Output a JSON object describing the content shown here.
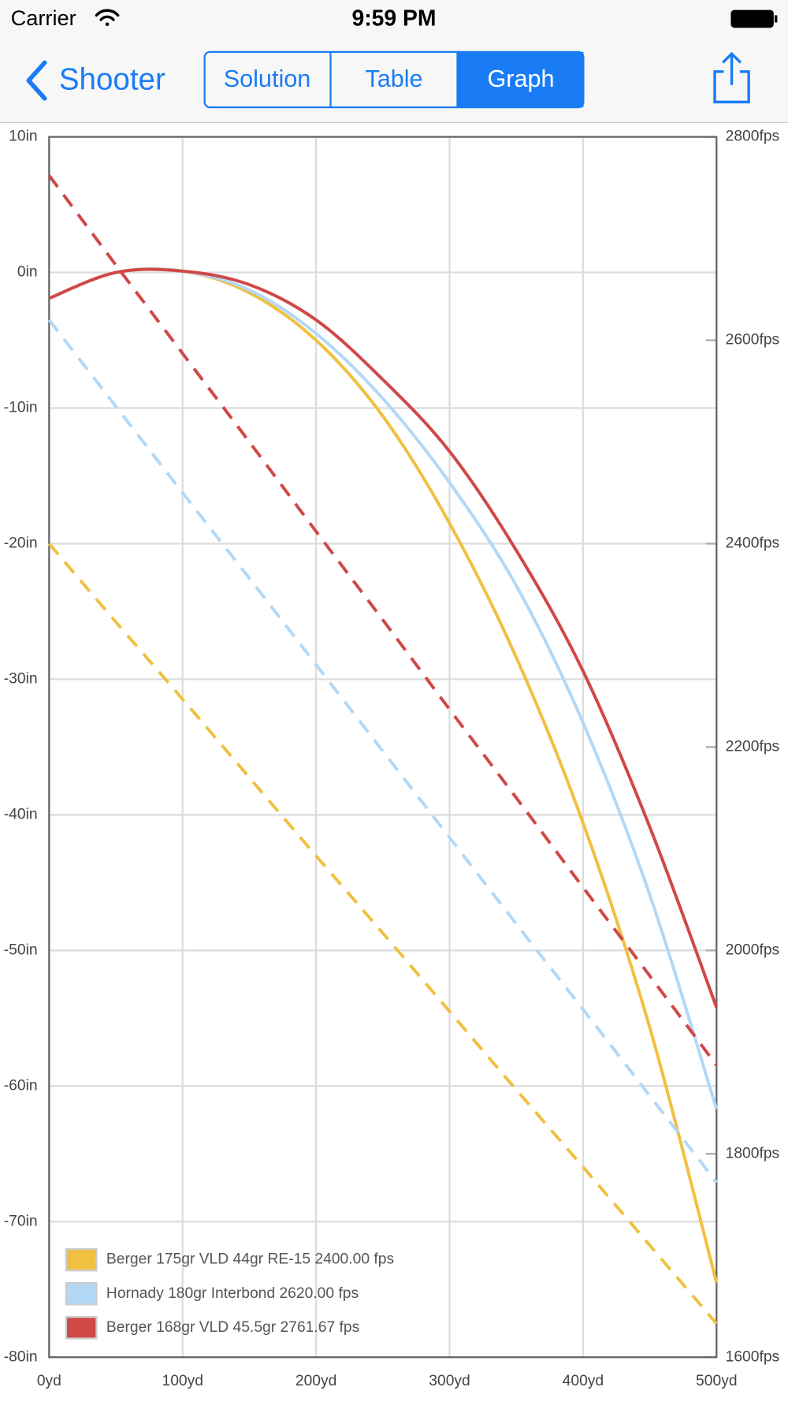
{
  "status_bar": {
    "carrier": "Carrier",
    "time": "9:59 PM"
  },
  "nav_bar": {
    "back": "Shooter",
    "segments": [
      "Solution",
      "Table",
      "Graph"
    ]
  },
  "chart_data": {
    "type": "line",
    "x": [
      0,
      50,
      100,
      150,
      200,
      250,
      300,
      350,
      400,
      450,
      500
    ],
    "xlim": [
      0,
      500
    ],
    "xticks": [
      {
        "value": 0,
        "label": "0yd"
      },
      {
        "value": 100,
        "label": "100yd"
      },
      {
        "value": 200,
        "label": "200yd"
      },
      {
        "value": 300,
        "label": "300yd"
      },
      {
        "value": 400,
        "label": "400yd"
      },
      {
        "value": 500,
        "label": "500yd"
      }
    ],
    "ylim": [
      -80,
      10
    ],
    "yticks": [
      {
        "value": 10,
        "label": "10in"
      },
      {
        "value": 0,
        "label": "0in"
      },
      {
        "value": -10,
        "label": "-10in"
      },
      {
        "value": -20,
        "label": "-20in"
      },
      {
        "value": -30,
        "label": "-30in"
      },
      {
        "value": -40,
        "label": "-40in"
      },
      {
        "value": -50,
        "label": "-50in"
      },
      {
        "value": -60,
        "label": "-60in"
      },
      {
        "value": -70,
        "label": "-70in"
      },
      {
        "value": -80,
        "label": "-80in"
      }
    ],
    "y2lim": [
      1600,
      2800
    ],
    "y2ticks": [
      {
        "value": 2800,
        "label": "2800fps"
      },
      {
        "value": 2600,
        "label": "2600fps"
      },
      {
        "value": 2400,
        "label": "2400fps"
      },
      {
        "value": 2200,
        "label": "2200fps"
      },
      {
        "value": 2000,
        "label": "2000fps"
      },
      {
        "value": 1800,
        "label": "1800fps"
      },
      {
        "value": 1600,
        "label": "1600fps"
      }
    ],
    "grid": true,
    "legend": "bottom-left",
    "series": [
      {
        "name": "Berger 175gr VLD 44gr RE-15 2400.00 fps",
        "color": "#f0c040",
        "values": [
          -1.9,
          0.0,
          0.1,
          -1.5,
          -5.0,
          -10.6,
          -18.5,
          -28.4,
          -40.6,
          -55.7,
          -74.5
        ]
      },
      {
        "name": "Hornady 180gr Interbond 2620.00 fps",
        "color": "#b3d8f5",
        "values": [
          -1.9,
          0.0,
          0.1,
          -1.3,
          -4.5,
          -9.3,
          -15.5,
          -23.1,
          -33.2,
          -45.9,
          -61.7
        ]
      },
      {
        "name": "Berger 168gr VLD 45.5gr 2761.67 fps",
        "color": "#d04848",
        "values": [
          -1.9,
          0.0,
          0.1,
          -0.9,
          -3.5,
          -7.9,
          -13.2,
          -20.5,
          -29.4,
          -40.9,
          -54.2
        ]
      },
      {
        "color": "#f0c040",
        "axis": "y2",
        "dashed": true,
        "values": [
          2400,
          2323,
          2247,
          2170,
          2093,
          2017,
          1940,
          1863,
          1787,
          1710,
          1633
        ]
      },
      {
        "color": "#b3d8f5",
        "axis": "y2",
        "dashed": true,
        "values": [
          2620,
          2535,
          2450,
          2366,
          2281,
          2196,
          2111,
          2026,
          1942,
          1857,
          1772
        ]
      },
      {
        "color": "#d04848",
        "axis": "y2",
        "dashed": true,
        "values": [
          2762,
          2674,
          2587,
          2500,
          2412,
          2325,
          2237,
          2150,
          2062,
          1975,
          1887
        ]
      }
    ]
  }
}
